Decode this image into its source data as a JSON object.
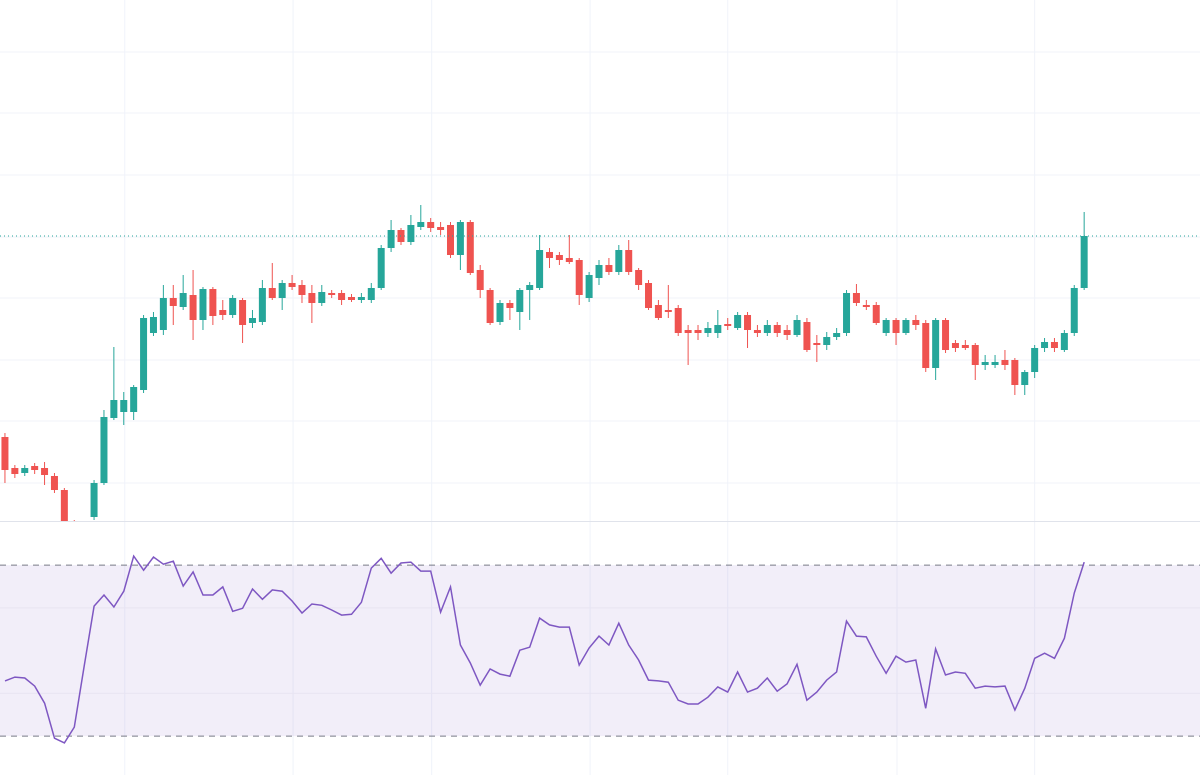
{
  "chart_data": [
    {
      "type": "candlestick",
      "up_color": "#26a69a",
      "down_color": "#ef5350",
      "grid": true,
      "ylim": [
        79,
        600
      ],
      "yticks": [
        117,
        179,
        240,
        302,
        363,
        425,
        487,
        548
      ],
      "xlim": [
        -0.5,
        120.7
      ],
      "xticks": [
        12.1,
        29.1,
        43.1,
        59.1,
        73,
        90.1,
        104
      ],
      "last_price_line_color": "#26a69a",
      "open": [
        163,
        132,
        127,
        134,
        132,
        124,
        110,
        75,
        55,
        83,
        117,
        182,
        188,
        188,
        210,
        267,
        270,
        302,
        293,
        305,
        280,
        311,
        290,
        285,
        300,
        277,
        278,
        312,
        302,
        317,
        315,
        307,
        297,
        307,
        307,
        303,
        300,
        300,
        312,
        352,
        370,
        358,
        373,
        378,
        373,
        375,
        345,
        378,
        330,
        310,
        278,
        297,
        288,
        310,
        312,
        348,
        345,
        342,
        340,
        302,
        322,
        335,
        328,
        350,
        330,
        317,
        295,
        290,
        292,
        270,
        270,
        267,
        267,
        276,
        272,
        285,
        270,
        267,
        275,
        270,
        265,
        278,
        257,
        255,
        263,
        267,
        307,
        295,
        295,
        267,
        280,
        267,
        280,
        277,
        232,
        280,
        257,
        255,
        255,
        235,
        235,
        240,
        240,
        215,
        228,
        252,
        258,
        250,
        267,
        312
      ],
      "high": [
        167,
        135,
        135,
        137,
        138,
        127,
        112,
        80,
        75,
        120,
        190,
        253,
        208,
        215,
        285,
        288,
        315,
        315,
        325,
        330,
        313,
        313,
        300,
        305,
        302,
        290,
        320,
        337,
        320,
        325,
        320,
        315,
        315,
        310,
        310,
        306,
        307,
        317,
        355,
        380,
        372,
        385,
        395,
        382,
        378,
        378,
        380,
        380,
        335,
        312,
        300,
        300,
        312,
        318,
        365,
        352,
        348,
        365,
        342,
        328,
        340,
        342,
        355,
        360,
        332,
        320,
        300,
        315,
        295,
        275,
        275,
        278,
        290,
        282,
        288,
        288,
        275,
        280,
        278,
        275,
        285,
        282,
        265,
        268,
        272,
        310,
        316,
        300,
        298,
        282,
        282,
        282,
        285,
        280,
        282,
        282,
        260,
        260,
        257,
        245,
        245,
        250,
        242,
        230,
        255,
        262,
        262,
        270,
        315,
        388
      ],
      "low": [
        117,
        122,
        124,
        126,
        115,
        107,
        70,
        50,
        48,
        80,
        115,
        180,
        175,
        180,
        207,
        264,
        265,
        275,
        290,
        260,
        270,
        275,
        280,
        282,
        257,
        272,
        275,
        300,
        290,
        310,
        297,
        277,
        294,
        302,
        295,
        298,
        297,
        297,
        310,
        348,
        355,
        355,
        370,
        368,
        365,
        342,
        330,
        325,
        302,
        275,
        275,
        280,
        270,
        280,
        310,
        332,
        335,
        336,
        295,
        298,
        315,
        325,
        325,
        325,
        310,
        290,
        280,
        282,
        264,
        235,
        260,
        263,
        262,
        270,
        270,
        252,
        263,
        264,
        263,
        260,
        263,
        248,
        238,
        250,
        260,
        264,
        294,
        290,
        275,
        264,
        255,
        265,
        270,
        228,
        220,
        247,
        248,
        250,
        220,
        230,
        232,
        230,
        205,
        205,
        222,
        248,
        248,
        248,
        264,
        310
      ],
      "close": [
        130,
        126,
        132,
        130,
        125,
        110,
        75,
        55,
        70,
        117,
        183,
        200,
        200,
        213,
        282,
        283,
        302,
        294,
        307,
        280,
        311,
        284,
        285,
        302,
        275,
        282,
        312,
        302,
        317,
        313,
        305,
        297,
        308,
        305,
        300,
        300,
        303,
        312,
        352,
        370,
        358,
        375,
        378,
        372,
        370,
        345,
        378,
        327,
        310,
        277,
        297,
        292,
        310,
        315,
        350,
        342,
        340,
        338,
        305,
        325,
        335,
        328,
        350,
        328,
        315,
        292,
        282,
        288,
        267,
        267,
        267,
        272,
        275,
        274,
        285,
        270,
        267,
        275,
        267,
        265,
        280,
        250,
        255,
        263,
        267,
        307,
        297,
        293,
        277,
        280,
        267,
        280,
        275,
        232,
        280,
        250,
        252,
        252,
        235,
        238,
        238,
        235,
        215,
        228,
        252,
        258,
        252,
        267,
        312,
        364
      ]
    },
    {
      "type": "line",
      "color": "#7e57c2",
      "band": [
        30,
        70
      ],
      "band_color": "#7e57c2",
      "grid": true,
      "ylim": [
        20.9,
        74.7
      ],
      "yticks": [
        40,
        60
      ],
      "values": [
        42.9,
        43.8,
        43.6,
        41.7,
        37.7,
        29.5,
        28.4,
        32.1,
        46.4,
        60.4,
        63.0,
        60.2,
        63.9,
        72.1,
        68.8,
        71.9,
        70.2,
        70.9,
        65.1,
        68.4,
        63.0,
        63.0,
        64.9,
        59.2,
        59.9,
        64.4,
        62.0,
        64.2,
        63.9,
        61.6,
        58.8,
        60.9,
        60.6,
        59.5,
        58.3,
        58.5,
        61.3,
        69.3,
        71.6,
        68.1,
        70.5,
        70.7,
        68.6,
        68.6,
        59.0,
        64.9,
        51.3,
        47.1,
        41.9,
        45.7,
        44.5,
        44.0,
        50.1,
        50.8,
        57.6,
        56.0,
        55.5,
        55.5,
        46.6,
        50.6,
        53.4,
        51.3,
        56.4,
        51.3,
        47.8,
        43.1,
        42.9,
        42.6,
        38.4,
        37.5,
        37.5,
        39.1,
        41.5,
        40.3,
        45.0,
        40.3,
        41.2,
        43.6,
        40.5,
        42.2,
        46.8,
        38.4,
        40.3,
        43.1,
        45.0,
        56.9,
        53.4,
        53.2,
        48.7,
        44.7,
        48.7,
        47.3,
        47.8,
        36.5,
        50.4,
        44.3,
        45.0,
        44.7,
        41.2,
        41.7,
        41.5,
        41.7,
        36.1,
        41.2,
        48.2,
        49.4,
        48.2,
        52.9,
        63.5,
        70.7
      ]
    }
  ]
}
